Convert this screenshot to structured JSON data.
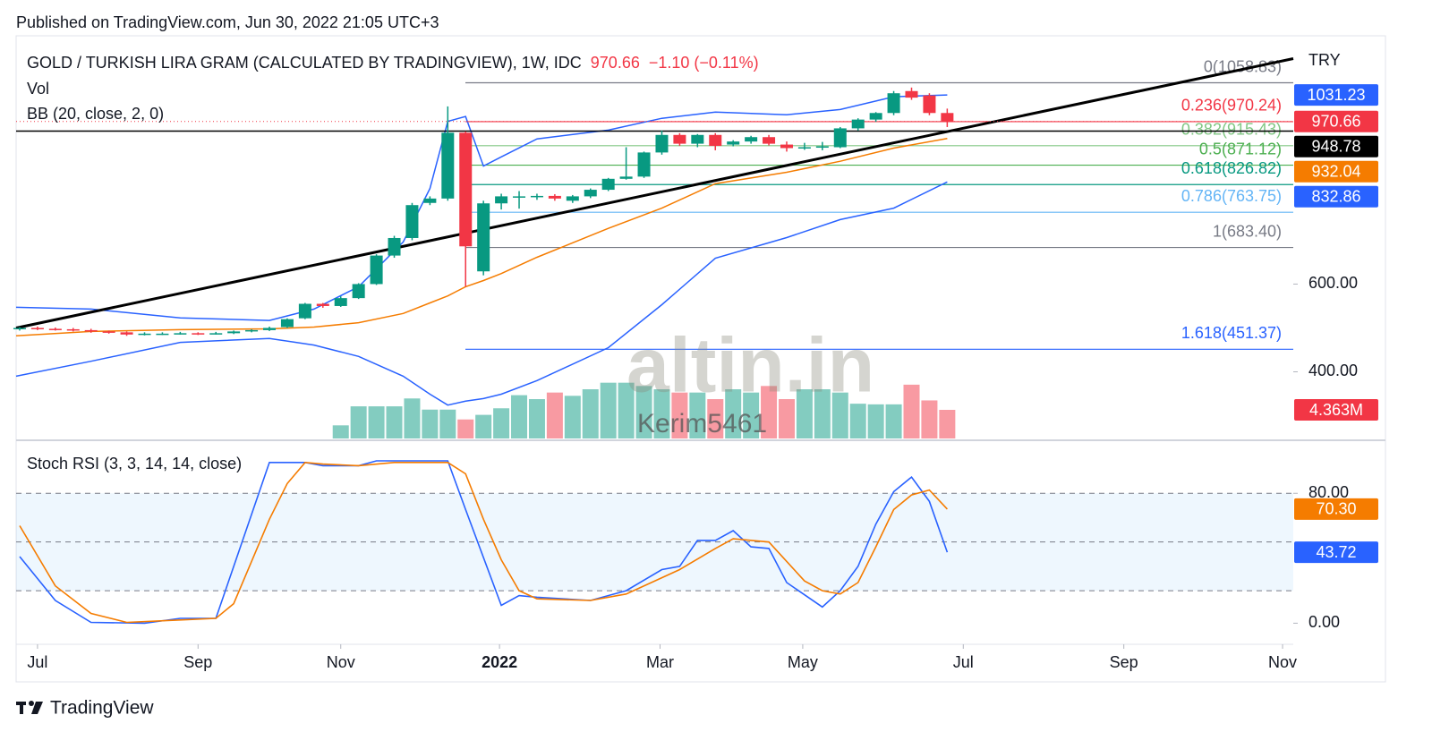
{
  "published": "Published on TradingView.com, Jun 30, 2022 21:05 UTC+3",
  "footer": "TradingView",
  "watermark": "altin.in",
  "author": "Kerim5461",
  "chart_data": [
    {
      "type": "candlestick",
      "title": "GOLD / TURKISH LIRA GRAM (CALCULATED BY TRADINGVIEW), 1W, IDC",
      "change": "−1.10 (−0.11%)",
      "currency": "TRY",
      "up_color": "#089981",
      "down_color": "#f23645",
      "xlim": [
        -0.2,
        71.4
      ],
      "ylim": [
        248,
        1166
      ],
      "yticks": [
        {
          "value": 600,
          "label": "600.00"
        },
        {
          "value": 400,
          "label": "400.00"
        }
      ],
      "open": [
        497,
        500,
        498,
        497,
        495,
        492,
        490,
        485,
        487,
        487,
        488,
        487,
        488,
        492,
        495,
        502,
        522,
        555,
        550,
        568,
        600,
        665,
        705,
        785,
        795,
        945,
        629,
        784,
        800,
        800,
        801,
        790,
        800,
        815,
        840,
        845,
        900,
        940,
        920,
        940,
        918,
        925,
        935,
        918,
        910,
        912,
        912,
        955,
        975,
        990,
        1040,
        1030,
        990
      ],
      "high": [
        502,
        503,
        501,
        500,
        498,
        494,
        492,
        490,
        490,
        491,
        490,
        491,
        494,
        497,
        503,
        522,
        557,
        557,
        572,
        602,
        668,
        710,
        785,
        800,
        1005,
        948,
        790,
        806,
        812,
        806,
        805,
        803,
        818,
        842,
        912,
        902,
        950,
        944,
        942,
        944,
        928,
        938,
        940,
        925,
        922,
        924,
        958,
        978,
        992,
        1040,
        1048,
        1035,
        1000
      ],
      "low": [
        494,
        495,
        494,
        492,
        489,
        487,
        482,
        483,
        484,
        485,
        484,
        485,
        486,
        490,
        493,
        500,
        520,
        546,
        548,
        566,
        598,
        660,
        700,
        780,
        790,
        594,
        620,
        770,
        772,
        792,
        790,
        785,
        796,
        812,
        838,
        842,
        895,
        915,
        912,
        905,
        914,
        920,
        916,
        902,
        906,
        905,
        910,
        950,
        970,
        985,
        1020,
        985,
        958
      ],
      "close": [
        500,
        498,
        497,
        495,
        492,
        490,
        485,
        487,
        487,
        488,
        487,
        488,
        492,
        495,
        500,
        520,
        555,
        550,
        568,
        600,
        665,
        705,
        780,
        795,
        945,
        686,
        784,
        800,
        800,
        801,
        795,
        800,
        815,
        840,
        845,
        900,
        940,
        920,
        940,
        915,
        925,
        935,
        920,
        910,
        912,
        914,
        955,
        975,
        990,
        1035,
        1025,
        990,
        970.66
      ],
      "volume": {
        "name": "Vol",
        "ylim": [
          0,
          30
        ],
        "values": [
          null,
          null,
          null,
          null,
          null,
          null,
          null,
          null,
          null,
          null,
          null,
          null,
          null,
          null,
          null,
          null,
          null,
          null,
          2.0,
          4.9,
          4.9,
          4.9,
          6.1,
          4.4,
          4.4,
          2.9,
          3.6,
          4.6,
          6.6,
          6.0,
          7.0,
          6.5,
          7.5,
          8.5,
          8.5,
          8.0,
          7.5,
          7.0,
          7.0,
          6.0,
          7.5,
          7.0,
          8.0,
          6.0,
          7.5,
          7.5,
          7.0,
          5.3,
          5.2,
          5.2,
          8.2,
          5.8,
          4.363
        ],
        "value_labels": [
          null,
          null,
          null,
          null,
          null,
          null,
          null,
          null,
          null,
          null,
          null,
          null,
          null,
          null,
          null,
          null,
          null,
          null,
          null,
          null,
          null,
          null,
          null,
          null,
          null,
          null,
          null,
          null,
          null,
          null,
          null,
          null,
          null,
          null,
          null,
          null,
          null,
          null,
          null,
          null,
          null,
          null,
          null,
          null,
          null,
          null,
          null,
          null,
          null,
          null,
          null,
          null,
          "4.363M"
        ]
      },
      "bb": {
        "name": "BB (20, close, 2, 0)",
        "color": "#2962ff",
        "basis_color": "#f57c00",
        "x": [
          -0.2,
          4,
          9,
          14,
          16.5,
          19,
          21.5,
          23,
          24,
          25,
          26,
          27,
          29,
          33,
          36,
          39,
          43,
          46,
          49,
          52
        ],
        "upper": [
          547,
          543,
          523,
          517,
          543,
          594,
          696,
          818,
          971,
          982,
          869,
          890,
          931,
          951,
          978,
          992,
          986,
          998,
          1027,
          1031.23
        ],
        "basis": [
          482,
          492,
          496,
          498,
          502,
          512,
          533,
          557,
          573,
          594,
          608,
          624,
          661,
          727,
          773,
          829,
          855,
          880,
          910,
          932.04
        ],
        "lower": [
          390,
          424,
          467,
          476,
          461,
          435,
          390,
          349,
          324,
          333,
          339,
          349,
          380,
          455,
          553,
          659,
          706,
          747,
          773,
          832.86
        ]
      },
      "fib": [
        {
          "value": 1058.83,
          "label": "0(1058.83)",
          "color": "#787b86"
        },
        {
          "value": 970.24,
          "label": "0.236(970.24)",
          "color": "#f23645"
        },
        {
          "value": 915.43,
          "label": "0.382(915.43)",
          "color": "#81c784"
        },
        {
          "value": 871.12,
          "label": "0.5(871.12)",
          "color": "#4caf50"
        },
        {
          "value": 826.82,
          "label": "0.618(826.82)",
          "color": "#089981"
        },
        {
          "value": 763.75,
          "label": "0.786(763.75)",
          "color": "#64b5f6"
        },
        {
          "value": 683.4,
          "label": "1(683.40)",
          "color": "#787b86"
        },
        {
          "value": 451.37,
          "label": "1.618(451.37)",
          "color": "#2962ff"
        }
      ],
      "trend_line": {
        "x": [
          -0.2,
          71.4
        ],
        "values": [
          500,
          1114
        ]
      },
      "horizontal_line": 948.78
    },
    {
      "type": "line",
      "title": "Stoch RSI (3, 3, 14, 14, close)",
      "xlim": [
        -0.2,
        71.4
      ],
      "xticks": [
        {
          "value": 1.0,
          "label": "Jul"
        },
        {
          "value": 10.0,
          "label": "Sep"
        },
        {
          "value": 18.0,
          "label": "Nov"
        },
        {
          "value": 26.9,
          "label": "2022"
        },
        {
          "value": 35.9,
          "label": "Mar"
        },
        {
          "value": 43.9,
          "label": "May"
        },
        {
          "value": 52.9,
          "label": "Jul"
        },
        {
          "value": 61.9,
          "label": "Sep"
        },
        {
          "value": 70.8,
          "label": "Nov"
        }
      ],
      "ylim": [
        -13,
        111
      ],
      "yticks": [
        {
          "value": 0,
          "label": "0.00"
        },
        {
          "value": 80,
          "label": "80.00"
        }
      ],
      "bands": [
        20,
        50,
        80
      ],
      "series": [
        {
          "color": "#2962ff",
          "x": [
            0,
            2,
            4,
            7,
            9,
            11,
            14,
            16,
            17,
            19,
            20,
            24,
            25,
            27,
            28,
            29,
            32,
            34,
            36,
            37,
            38,
            39,
            40,
            41,
            42,
            43,
            45,
            46,
            47,
            48,
            49,
            50,
            51,
            52
          ],
          "values": [
            41,
            14,
            0.5,
            0,
            3,
            3,
            99,
            99,
            97,
            97,
            100,
            100,
            70,
            11,
            17,
            16,
            14,
            20,
            33,
            35,
            51,
            51,
            57,
            47,
            46,
            25,
            10,
            20,
            35,
            61,
            81,
            90,
            75,
            43.72
          ]
        },
        {
          "color": "#f57c00",
          "x": [
            0,
            2,
            4,
            6,
            9,
            11,
            12,
            14,
            15,
            16,
            17,
            19,
            21,
            24,
            25,
            26,
            27,
            28,
            29,
            32,
            34,
            36,
            37,
            39,
            40,
            42,
            44,
            45,
            46,
            47,
            48,
            49,
            50,
            51,
            52
          ],
          "values": [
            60,
            23,
            6,
            0.5,
            2,
            3,
            12,
            64,
            86,
            99,
            98,
            97,
            99,
            99,
            92,
            64,
            39,
            20,
            15,
            14,
            18,
            28,
            33,
            46,
            52,
            50,
            26,
            20,
            18,
            25,
            47,
            70,
            79,
            82,
            70.3
          ],
          "value_labels": [
            null,
            null,
            null,
            null,
            null,
            null,
            null,
            null,
            null,
            null,
            null,
            null,
            null,
            null,
            null,
            null,
            null,
            null,
            null,
            null,
            null,
            null,
            null,
            null,
            null,
            null,
            null,
            null,
            null,
            null,
            null,
            null,
            null,
            null,
            "70.30"
          ]
        }
      ]
    }
  ]
}
